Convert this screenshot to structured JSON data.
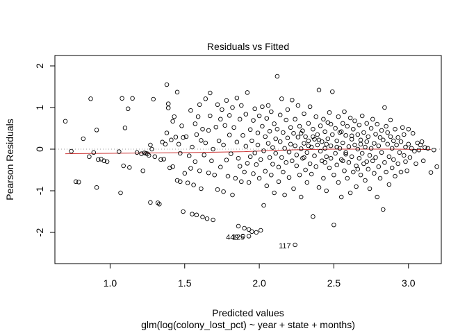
{
  "chart_data": {
    "type": "scatter",
    "title": "Residuals vs Fitted",
    "xlabel": "Predicted values",
    "subtitle": "glm(log(colony_lost_pct) ~ year + state + months)",
    "ylabel": "Pearson Residuals",
    "xlim": [
      0.63,
      3.22
    ],
    "ylim": [
      -2.75,
      2.25
    ],
    "x_ticks": [
      "1.0",
      "1.5",
      "2.0",
      "2.5",
      "3.0"
    ],
    "x_tick_values": [
      1.0,
      1.5,
      2.0,
      2.5,
      3.0
    ],
    "y_ticks": [
      "-2",
      "-1",
      "0",
      "1",
      "2"
    ],
    "y_tick_values": [
      -2,
      -1,
      0,
      1,
      2
    ],
    "reference_line_y": 0,
    "reference_line_style": "dotted",
    "smoother_color": "#cc3333",
    "smoother": [
      [
        0.7,
        -0.11
      ],
      [
        1.0,
        -0.1
      ],
      [
        1.3,
        -0.09
      ],
      [
        1.6,
        -0.08
      ],
      [
        1.9,
        -0.06
      ],
      [
        2.1,
        -0.03
      ],
      [
        2.3,
        -0.01
      ],
      [
        2.5,
        0.0
      ],
      [
        2.7,
        0.0
      ],
      [
        2.9,
        0.0
      ],
      [
        3.15,
        -0.01
      ]
    ],
    "labeled_points": [
      {
        "label": "449",
        "x": 1.89,
        "y": -2.09
      },
      {
        "label": "125",
        "x": 1.93,
        "y": -2.09
      },
      {
        "label": "117",
        "x": 2.24,
        "y": -2.3
      }
    ],
    "points": [
      [
        0.7,
        0.67
      ],
      [
        0.74,
        -0.05
      ],
      [
        0.77,
        -0.78
      ],
      [
        0.79,
        -0.79
      ],
      [
        0.82,
        0.25
      ],
      [
        0.86,
        -0.18
      ],
      [
        0.87,
        1.21
      ],
      [
        0.89,
        -0.08
      ],
      [
        0.91,
        0.46
      ],
      [
        0.91,
        -0.92
      ],
      [
        0.92,
        -0.25
      ],
      [
        0.94,
        -0.24
      ],
      [
        0.96,
        -0.28
      ],
      [
        0.98,
        -0.3
      ],
      [
        1.06,
        -0.06
      ],
      [
        1.07,
        -1.05
      ],
      [
        1.08,
        1.22
      ],
      [
        1.09,
        -0.4
      ],
      [
        1.1,
        0.51
      ],
      [
        1.12,
        0.97
      ],
      [
        1.13,
        -0.44
      ],
      [
        1.15,
        1.22
      ],
      [
        1.18,
        -0.08
      ],
      [
        1.21,
        -0.11
      ],
      [
        1.22,
        -0.52
      ],
      [
        1.23,
        -0.09
      ],
      [
        1.24,
        -0.1
      ],
      [
        1.25,
        -0.11
      ],
      [
        1.26,
        -0.15
      ],
      [
        1.27,
        0.1
      ],
      [
        1.27,
        -1.28
      ],
      [
        1.28,
        0.0
      ],
      [
        1.29,
        1.2
      ],
      [
        1.3,
        -0.18
      ],
      [
        1.32,
        -1.29
      ],
      [
        1.33,
        -1.32
      ],
      [
        1.34,
        -0.25
      ],
      [
        1.35,
        0.17
      ],
      [
        1.36,
        -0.24
      ],
      [
        1.37,
        0.12
      ],
      [
        1.38,
        0.39
      ],
      [
        1.38,
        1.55
      ],
      [
        1.39,
        1.09
      ],
      [
        1.39,
        0.99
      ],
      [
        1.4,
        -0.45
      ],
      [
        1.41,
        0.22
      ],
      [
        1.42,
        0.67
      ],
      [
        1.42,
        -0.42
      ],
      [
        1.43,
        0.78
      ],
      [
        1.44,
        0.29
      ],
      [
        1.45,
        1.37
      ],
      [
        1.45,
        -0.75
      ],
      [
        1.46,
        0.12
      ],
      [
        1.47,
        -0.78
      ],
      [
        1.47,
        -0.1
      ],
      [
        1.48,
        0.56
      ],
      [
        1.49,
        0.28
      ],
      [
        1.49,
        -1.5
      ],
      [
        1.5,
        -0.58
      ],
      [
        1.51,
        0.3
      ],
      [
        1.52,
        -0.81
      ],
      [
        1.53,
        -0.16
      ],
      [
        1.54,
        -0.46
      ],
      [
        1.54,
        0.93
      ],
      [
        1.55,
        0.05
      ],
      [
        1.55,
        -1.56
      ],
      [
        1.56,
        -0.86
      ],
      [
        1.57,
        0.61
      ],
      [
        1.57,
        -0.3
      ],
      [
        1.58,
        0.35
      ],
      [
        1.58,
        -1.58
      ],
      [
        1.59,
        0.78
      ],
      [
        1.6,
        1.07
      ],
      [
        1.6,
        -0.52
      ],
      [
        1.61,
        0.21
      ],
      [
        1.61,
        -0.95
      ],
      [
        1.62,
        0.48
      ],
      [
        1.62,
        -1.63
      ],
      [
        1.63,
        -0.14
      ],
      [
        1.64,
        0.15
      ],
      [
        1.64,
        1.21
      ],
      [
        1.65,
        -1.67
      ],
      [
        1.66,
        -0.57
      ],
      [
        1.66,
        0.45
      ],
      [
        1.67,
        0.8
      ],
      [
        1.67,
        1.35
      ],
      [
        1.68,
        -0.28
      ],
      [
        1.69,
        0.0
      ],
      [
        1.69,
        -1.7
      ],
      [
        1.7,
        -0.62
      ],
      [
        1.71,
        0.53
      ],
      [
        1.72,
        -0.97
      ],
      [
        1.72,
        1.07
      ],
      [
        1.73,
        0.2
      ],
      [
        1.74,
        -0.43
      ],
      [
        1.74,
        0.72
      ],
      [
        1.75,
        0.95
      ],
      [
        1.76,
        0.1
      ],
      [
        1.76,
        -1.02
      ],
      [
        1.77,
        0.57
      ],
      [
        1.78,
        -0.26
      ],
      [
        1.78,
        1.17
      ],
      [
        1.79,
        -0.65
      ],
      [
        1.8,
        0.34
      ],
      [
        1.8,
        0.81
      ],
      [
        1.81,
        -0.11
      ],
      [
        1.82,
        -1.1
      ],
      [
        1.82,
        1.0
      ],
      [
        1.83,
        0.52
      ],
      [
        1.84,
        -0.7
      ],
      [
        1.85,
        0.17
      ],
      [
        1.85,
        1.23
      ],
      [
        1.86,
        -0.22
      ],
      [
        1.86,
        -1.85
      ],
      [
        1.87,
        0.72
      ],
      [
        1.87,
        -0.41
      ],
      [
        1.88,
        -0.78
      ],
      [
        1.88,
        1.05
      ],
      [
        1.89,
        0.33
      ],
      [
        1.9,
        -0.55
      ],
      [
        1.9,
        -1.9
      ],
      [
        1.91,
        0.84
      ],
      [
        1.91,
        0.07
      ],
      [
        1.92,
        -0.34
      ],
      [
        1.92,
        1.36
      ],
      [
        1.93,
        -0.8
      ],
      [
        1.93,
        -1.93
      ],
      [
        1.94,
        0.47
      ],
      [
        1.94,
        -0.18
      ],
      [
        1.95,
        0.2
      ],
      [
        1.95,
        -1.98
      ],
      [
        1.96,
        0.69
      ],
      [
        1.96,
        -0.59
      ],
      [
        1.97,
        0.97
      ],
      [
        1.97,
        -0.09
      ],
      [
        1.98,
        -0.37
      ],
      [
        1.98,
        -2.0
      ],
      [
        1.99,
        0.39
      ],
      [
        1.99,
        0.1
      ],
      [
        2.0,
        -0.7
      ],
      [
        2.0,
        0.8
      ],
      [
        2.01,
        -1.95
      ],
      [
        2.01,
        -0.25
      ],
      [
        2.02,
        0.55
      ],
      [
        2.02,
        1.02
      ],
      [
        2.03,
        -0.04
      ],
      [
        2.03,
        -1.35
      ],
      [
        2.04,
        0.3
      ],
      [
        2.04,
        -0.53
      ],
      [
        2.05,
        0.74
      ],
      [
        2.05,
        -0.88
      ],
      [
        2.06,
        0.14
      ],
      [
        2.06,
        1.05
      ],
      [
        2.07,
        -0.2
      ],
      [
        2.07,
        0.43
      ],
      [
        2.08,
        -0.62
      ],
      [
        2.08,
        0.9
      ],
      [
        2.09,
        0.04
      ],
      [
        2.09,
        -0.36
      ],
      [
        2.1,
        0.61
      ],
      [
        2.1,
        -1.05
      ],
      [
        2.11,
        0.25
      ],
      [
        2.11,
        -0.1
      ],
      [
        2.12,
        1.75
      ],
      [
        2.12,
        0.48
      ],
      [
        2.13,
        -0.43
      ],
      [
        2.13,
        -0.78
      ],
      [
        2.14,
        0.82
      ],
      [
        2.14,
        0.18
      ],
      [
        2.15,
        -0.2
      ],
      [
        2.15,
        1.21
      ],
      [
        2.16,
        -0.55
      ],
      [
        2.16,
        0.4
      ],
      [
        2.17,
        0.02
      ],
      [
        2.17,
        -1.1
      ],
      [
        2.18,
        0.7
      ],
      [
        2.18,
        -0.32
      ],
      [
        2.19,
        0.27
      ],
      [
        2.19,
        0.95
      ],
      [
        2.2,
        -0.07
      ],
      [
        2.2,
        -0.68
      ],
      [
        2.21,
        0.52
      ],
      [
        2.21,
        0.12
      ],
      [
        2.22,
        -0.28
      ],
      [
        2.22,
        1.18
      ],
      [
        2.23,
        0.38
      ],
      [
        2.23,
        -0.95
      ],
      [
        2.24,
        0.08
      ],
      [
        2.24,
        0.72
      ],
      [
        2.25,
        -0.4
      ],
      [
        2.25,
        -0.14
      ],
      [
        2.26,
        0.29
      ],
      [
        2.26,
        1.05
      ],
      [
        2.27,
        -0.62
      ],
      [
        2.27,
        0.55
      ],
      [
        2.28,
        0.01
      ],
      [
        2.28,
        -1.15
      ],
      [
        2.29,
        0.44
      ],
      [
        2.29,
        -0.22
      ],
      [
        2.3,
        0.85
      ],
      [
        2.3,
        0.14
      ],
      [
        2.31,
        -0.5
      ],
      [
        2.31,
        0.3
      ],
      [
        2.32,
        -0.08
      ],
      [
        2.32,
        -0.8
      ],
      [
        2.33,
        0.62
      ],
      [
        2.33,
        0.2
      ],
      [
        2.34,
        -0.35
      ],
      [
        2.34,
        1.02
      ],
      [
        2.35,
        0.05
      ],
      [
        2.35,
        -0.6
      ],
      [
        2.36,
        0.48
      ],
      [
        2.36,
        -1.62
      ],
      [
        2.37,
        0.24
      ],
      [
        2.37,
        -0.16
      ],
      [
        2.38,
        0.78
      ],
      [
        2.38,
        -0.42
      ],
      [
        2.39,
        0.1
      ],
      [
        2.39,
        0.35
      ],
      [
        2.4,
        -0.92
      ],
      [
        2.4,
        1.42
      ],
      [
        2.41,
        0.56
      ],
      [
        2.41,
        -0.05
      ],
      [
        2.42,
        0.18
      ],
      [
        2.42,
        -0.28
      ],
      [
        2.43,
        0.72
      ],
      [
        2.43,
        -0.7
      ],
      [
        2.44,
        0.02
      ],
      [
        2.44,
        0.42
      ],
      [
        2.45,
        -0.18
      ],
      [
        2.45,
        -1.0
      ],
      [
        2.46,
        0.64
      ],
      [
        2.46,
        0.25
      ],
      [
        2.47,
        -0.45
      ],
      [
        2.47,
        0.88
      ],
      [
        2.48,
        0.08
      ],
      [
        2.48,
        -0.22
      ],
      [
        2.49,
        0.35
      ],
      [
        2.49,
        1.38
      ],
      [
        2.5,
        -0.62
      ],
      [
        2.5,
        -1.82
      ],
      [
        2.51,
        0.5
      ],
      [
        2.51,
        -0.1
      ],
      [
        2.52,
        0.2
      ],
      [
        2.52,
        -0.38
      ],
      [
        2.53,
        0.78
      ],
      [
        2.53,
        -0.8
      ],
      [
        2.54,
        0.02
      ],
      [
        2.54,
        0.4
      ],
      [
        2.55,
        -0.25
      ],
      [
        2.55,
        -1.15
      ],
      [
        2.56,
        0.62
      ],
      [
        2.56,
        0.15
      ],
      [
        2.57,
        -0.52
      ],
      [
        2.57,
        0.9
      ],
      [
        2.58,
        -0.08
      ],
      [
        2.58,
        0.33
      ],
      [
        2.59,
        -0.7
      ],
      [
        2.59,
        0.55
      ],
      [
        2.6,
        0.06
      ],
      [
        2.6,
        -0.32
      ],
      [
        2.61,
        0.75
      ],
      [
        2.61,
        -1.05
      ],
      [
        2.62,
        0.24
      ],
      [
        2.62,
        -0.18
      ],
      [
        2.63,
        0.48
      ],
      [
        2.63,
        -0.55
      ],
      [
        2.64,
        0.1
      ],
      [
        2.64,
        0.68
      ],
      [
        2.65,
        -0.4
      ],
      [
        2.65,
        -0.9
      ],
      [
        2.66,
        0.35
      ],
      [
        2.66,
        0.0
      ],
      [
        2.67,
        -0.22
      ],
      [
        2.67,
        0.58
      ],
      [
        2.68,
        -0.62
      ],
      [
        2.68,
        0.22
      ],
      [
        2.69,
        -0.1
      ],
      [
        2.69,
        0.8
      ],
      [
        2.7,
        0.4
      ],
      [
        2.7,
        -0.35
      ],
      [
        2.71,
        0.05
      ],
      [
        2.71,
        -0.75
      ],
      [
        2.72,
        0.62
      ],
      [
        2.72,
        0.18
      ],
      [
        2.73,
        -0.48
      ],
      [
        2.73,
        0.3
      ],
      [
        2.74,
        -0.15
      ],
      [
        2.74,
        -0.95
      ],
      [
        2.75,
        0.5
      ],
      [
        2.75,
        0.02
      ],
      [
        2.76,
        -0.28
      ],
      [
        2.76,
        0.72
      ],
      [
        2.77,
        -0.58
      ],
      [
        2.77,
        0.14
      ],
      [
        2.78,
        0.36
      ],
      [
        2.78,
        -0.2
      ],
      [
        2.79,
        -1.15
      ],
      [
        2.79,
        0.6
      ],
      [
        2.8,
        -0.42
      ],
      [
        2.8,
        0.08
      ],
      [
        2.81,
        0.28
      ],
      [
        2.81,
        -0.7
      ],
      [
        2.82,
        0.45
      ],
      [
        2.82,
        -0.08
      ],
      [
        2.83,
        -1.45
      ],
      [
        2.83,
        0.22
      ],
      [
        2.84,
        -0.32
      ],
      [
        2.84,
        1.0
      ],
      [
        2.85,
        0.55
      ],
      [
        2.85,
        -0.55
      ],
      [
        2.86,
        0.12
      ],
      [
        2.86,
        0.4
      ],
      [
        2.87,
        -0.18
      ],
      [
        2.87,
        -0.85
      ],
      [
        2.88,
        0.3
      ],
      [
        2.88,
        0.7
      ],
      [
        2.89,
        -0.45
      ],
      [
        2.89,
        0.02
      ],
      [
        2.9,
        0.2
      ],
      [
        2.9,
        -0.25
      ],
      [
        2.91,
        0.48
      ],
      [
        2.91,
        -0.65
      ],
      [
        2.92,
        0.1
      ],
      [
        2.93,
        0.28
      ],
      [
        2.93,
        -0.35
      ],
      [
        2.94,
        -0.08
      ],
      [
        2.95,
        0.18
      ],
      [
        2.95,
        -0.55
      ],
      [
        2.96,
        0.52
      ],
      [
        2.97,
        -0.15
      ],
      [
        2.97,
        0.35
      ],
      [
        2.98,
        0.05
      ],
      [
        2.98,
        -0.3
      ],
      [
        2.99,
        -0.52
      ],
      [
        3.0,
        0.48
      ],
      [
        3.0,
        0.12
      ],
      [
        3.01,
        -0.2
      ],
      [
        3.02,
        0.02
      ],
      [
        3.03,
        0.38
      ],
      [
        3.04,
        -0.05
      ],
      [
        3.05,
        -0.35
      ],
      [
        3.06,
        0.15
      ],
      [
        3.07,
        -0.02
      ],
      [
        3.08,
        0.1
      ],
      [
        3.09,
        0.18
      ],
      [
        3.1,
        -0.28
      ],
      [
        3.11,
        0.04
      ],
      [
        3.13,
        0.02
      ],
      [
        3.15,
        -0.56
      ],
      [
        3.17,
        -0.02
      ],
      [
        3.19,
        -0.42
      ],
      [
        2.55,
        0.42
      ],
      [
        2.4,
        0.22
      ],
      [
        2.33,
        0.08
      ],
      [
        2.48,
        0.6
      ],
      [
        2.62,
        0.32
      ],
      [
        2.58,
        -0.12
      ],
      [
        2.45,
        0.12
      ],
      [
        2.36,
        0.3
      ],
      [
        2.28,
        0.38
      ],
      [
        2.52,
        0.05
      ],
      [
        2.68,
        0.12
      ],
      [
        2.44,
        -0.32
      ],
      [
        2.3,
        -0.2
      ],
      [
        2.56,
        -0.28
      ],
      [
        2.66,
        -0.48
      ],
      [
        2.72,
        -0.3
      ]
    ]
  }
}
